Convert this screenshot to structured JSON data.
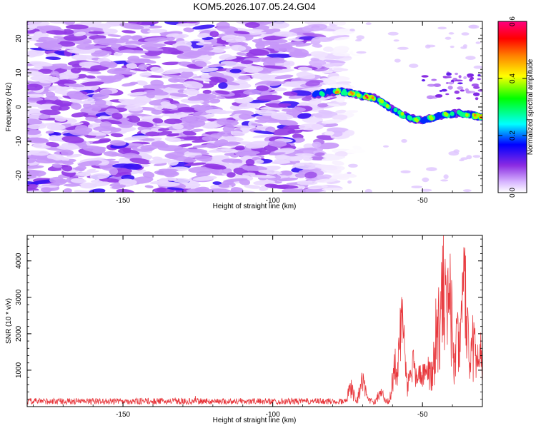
{
  "title": "KOM5.2026.107.05.24.G04",
  "chart_data": [
    {
      "type": "heatmap",
      "name": "spectrogram",
      "xlabel": "Height of straight line (km)",
      "ylabel": "Frequency (Hz)",
      "xlim": [
        -182,
        -30
      ],
      "ylim": [
        -25,
        25
      ],
      "xticks": [
        -150,
        -100,
        -50
      ],
      "yticks": [
        -20,
        -10,
        0,
        10,
        20
      ],
      "colorbar": {
        "label": "Normalized spectral amplitude",
        "range": [
          0,
          0.6
        ],
        "ticks": [
          0.0,
          0.2,
          0.4,
          0.6
        ],
        "colors": [
          "#ffffff",
          "#d9b8ff",
          "#8a2be2",
          "#0000ff",
          "#00ffff",
          "#00ff00",
          "#ffff00",
          "#ff8000",
          "#ff0000",
          "#ff0080"
        ]
      },
      "noise_region": {
        "x_range": [
          -182,
          -76
        ],
        "frequency_range": [
          -25,
          25
        ],
        "typical_amplitude": [
          0.03,
          0.12
        ]
      },
      "signal_track": {
        "x": [
          -86,
          -82,
          -78,
          -74,
          -70,
          -66,
          -62,
          -58,
          -54,
          -50,
          -46,
          -42,
          -38,
          -34,
          -30
        ],
        "frequency": [
          3.5,
          4.2,
          4.6,
          4.0,
          3.2,
          2.6,
          0.5,
          -1.8,
          -3.2,
          -4.0,
          -3.0,
          -2.2,
          -1.8,
          -2.3,
          -3.0
        ],
        "amplitude": [
          0.22,
          0.3,
          0.42,
          0.45,
          0.55,
          0.48,
          0.35,
          0.3,
          0.4,
          0.3,
          0.32,
          0.35,
          0.28,
          0.45,
          0.52
        ]
      }
    },
    {
      "type": "line",
      "name": "snr",
      "xlabel": "Height of straight line (km)",
      "ylabel": "SNR (10 * v/v)",
      "xlim": [
        -182,
        -30
      ],
      "ylim": [
        0,
        4700
      ],
      "xticks": [
        -150,
        -100,
        -50
      ],
      "yticks": [
        1000,
        2000,
        3000,
        4000
      ],
      "color": "#e8383d",
      "baseline": 170,
      "peaks": [
        {
          "x": -74,
          "y": 750
        },
        {
          "x": -70,
          "y": 980
        },
        {
          "x": -64,
          "y": 560
        },
        {
          "x": -59,
          "y": 1600
        },
        {
          "x": -57,
          "y": 3080
        },
        {
          "x": -53,
          "y": 1550
        },
        {
          "x": -48,
          "y": 1400
        },
        {
          "x": -45,
          "y": 3500
        },
        {
          "x": -43,
          "y": 4700
        },
        {
          "x": -41,
          "y": 4300
        },
        {
          "x": -38,
          "y": 3000
        },
        {
          "x": -36,
          "y": 4550
        },
        {
          "x": -33,
          "y": 2550
        },
        {
          "x": -31,
          "y": 2200
        }
      ]
    }
  ]
}
